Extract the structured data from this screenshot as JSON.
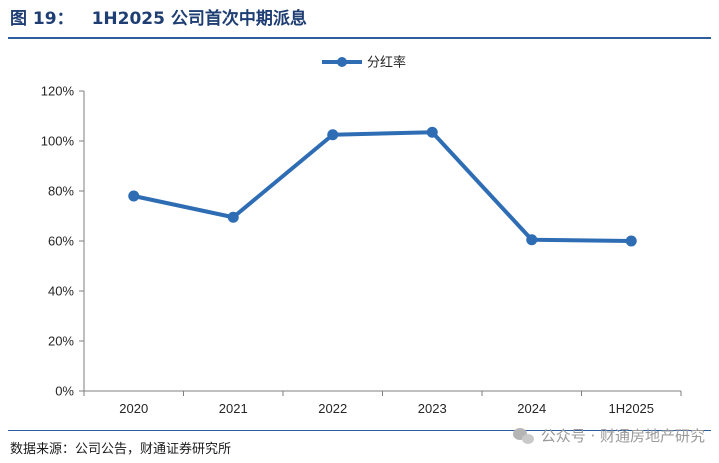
{
  "figure": {
    "number": "图 19：",
    "title": "1H2025 公司首次中期派息",
    "source": "数据来源：公司公告，财通证券研究所",
    "watermark": "公众号 · 财通房地产研究"
  },
  "colors": {
    "series": "#2e6db4",
    "title": "#1f3e73",
    "rule": "#2e5d9f",
    "axis": "#7f7f7f"
  },
  "chart_data": {
    "type": "line",
    "categories": [
      "2020",
      "2021",
      "2022",
      "2023",
      "2024",
      "1H2025"
    ],
    "series": [
      {
        "name": "分红率",
        "values": [
          78,
          69.5,
          102.5,
          103.5,
          60.5,
          60
        ]
      }
    ],
    "ylim": [
      0,
      120
    ],
    "yticks": [
      0,
      20,
      40,
      60,
      80,
      100,
      120
    ],
    "ytick_labels": [
      "0%",
      "20%",
      "40%",
      "60%",
      "80%",
      "100%",
      "120%"
    ],
    "xlabel": "",
    "ylabel": "",
    "legend_position": "top-center",
    "grid": false
  }
}
